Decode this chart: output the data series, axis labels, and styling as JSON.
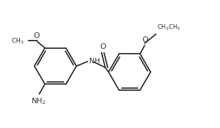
{
  "bg_color": "#ffffff",
  "line_color": "#2a2a2a",
  "text_color": "#2a2a2a",
  "lw": 1.3,
  "fontsize": 7.0,
  "figsize": [
    3.18,
    1.86
  ],
  "dpi": 100,
  "xlim": [
    0,
    10.5
  ],
  "ylim": [
    0,
    6.2
  ]
}
